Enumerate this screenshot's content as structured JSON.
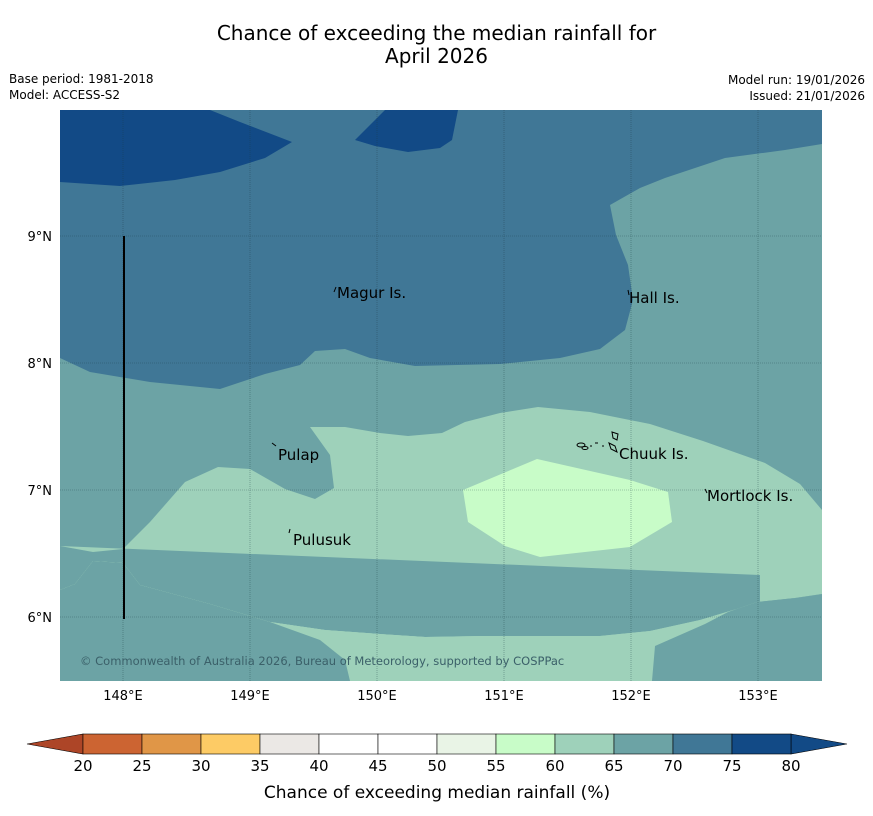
{
  "title": {
    "line1": "Chance of exceeding the median rainfall for",
    "line2": "April 2026"
  },
  "meta": {
    "base_period": "Base period: 1981-2018",
    "model": "Model: ACCESS-S2",
    "model_run": "Model run: 19/01/2026",
    "issued": "Issued: 21/01/2026"
  },
  "map": {
    "lon_labels": [
      "148°E",
      "149°E",
      "150°E",
      "151°E",
      "152°E",
      "153°E"
    ],
    "lat_labels": [
      "9°N",
      "8°N",
      "7°N",
      "6°N"
    ],
    "places": [
      {
        "name": "Magur Is."
      },
      {
        "name": "Hall Is."
      },
      {
        "name": "Pulap"
      },
      {
        "name": "Chuuk Is."
      },
      {
        "name": "Mortlock Is."
      },
      {
        "name": "Pulusuk"
      }
    ],
    "copyright": "© Commonwealth of Australia 2026, Bureau of Meteorology, supported by COSPPac"
  },
  "colorbar": {
    "ticks": [
      "20",
      "25",
      "30",
      "35",
      "40",
      "45",
      "50",
      "55",
      "60",
      "65",
      "70",
      "75",
      "80"
    ],
    "colors": [
      "#ad4527",
      "#cc6432",
      "#e09647",
      "#fdcb65",
      "#ebe8e5",
      "#ffffff",
      "#ffffff",
      "#e9f4e6",
      "#c8fcc8",
      "#9ed1ba",
      "#6ca3a5",
      "#407796",
      "#124a86"
    ],
    "label": "Chance of exceeding median rainfall (%)"
  }
}
